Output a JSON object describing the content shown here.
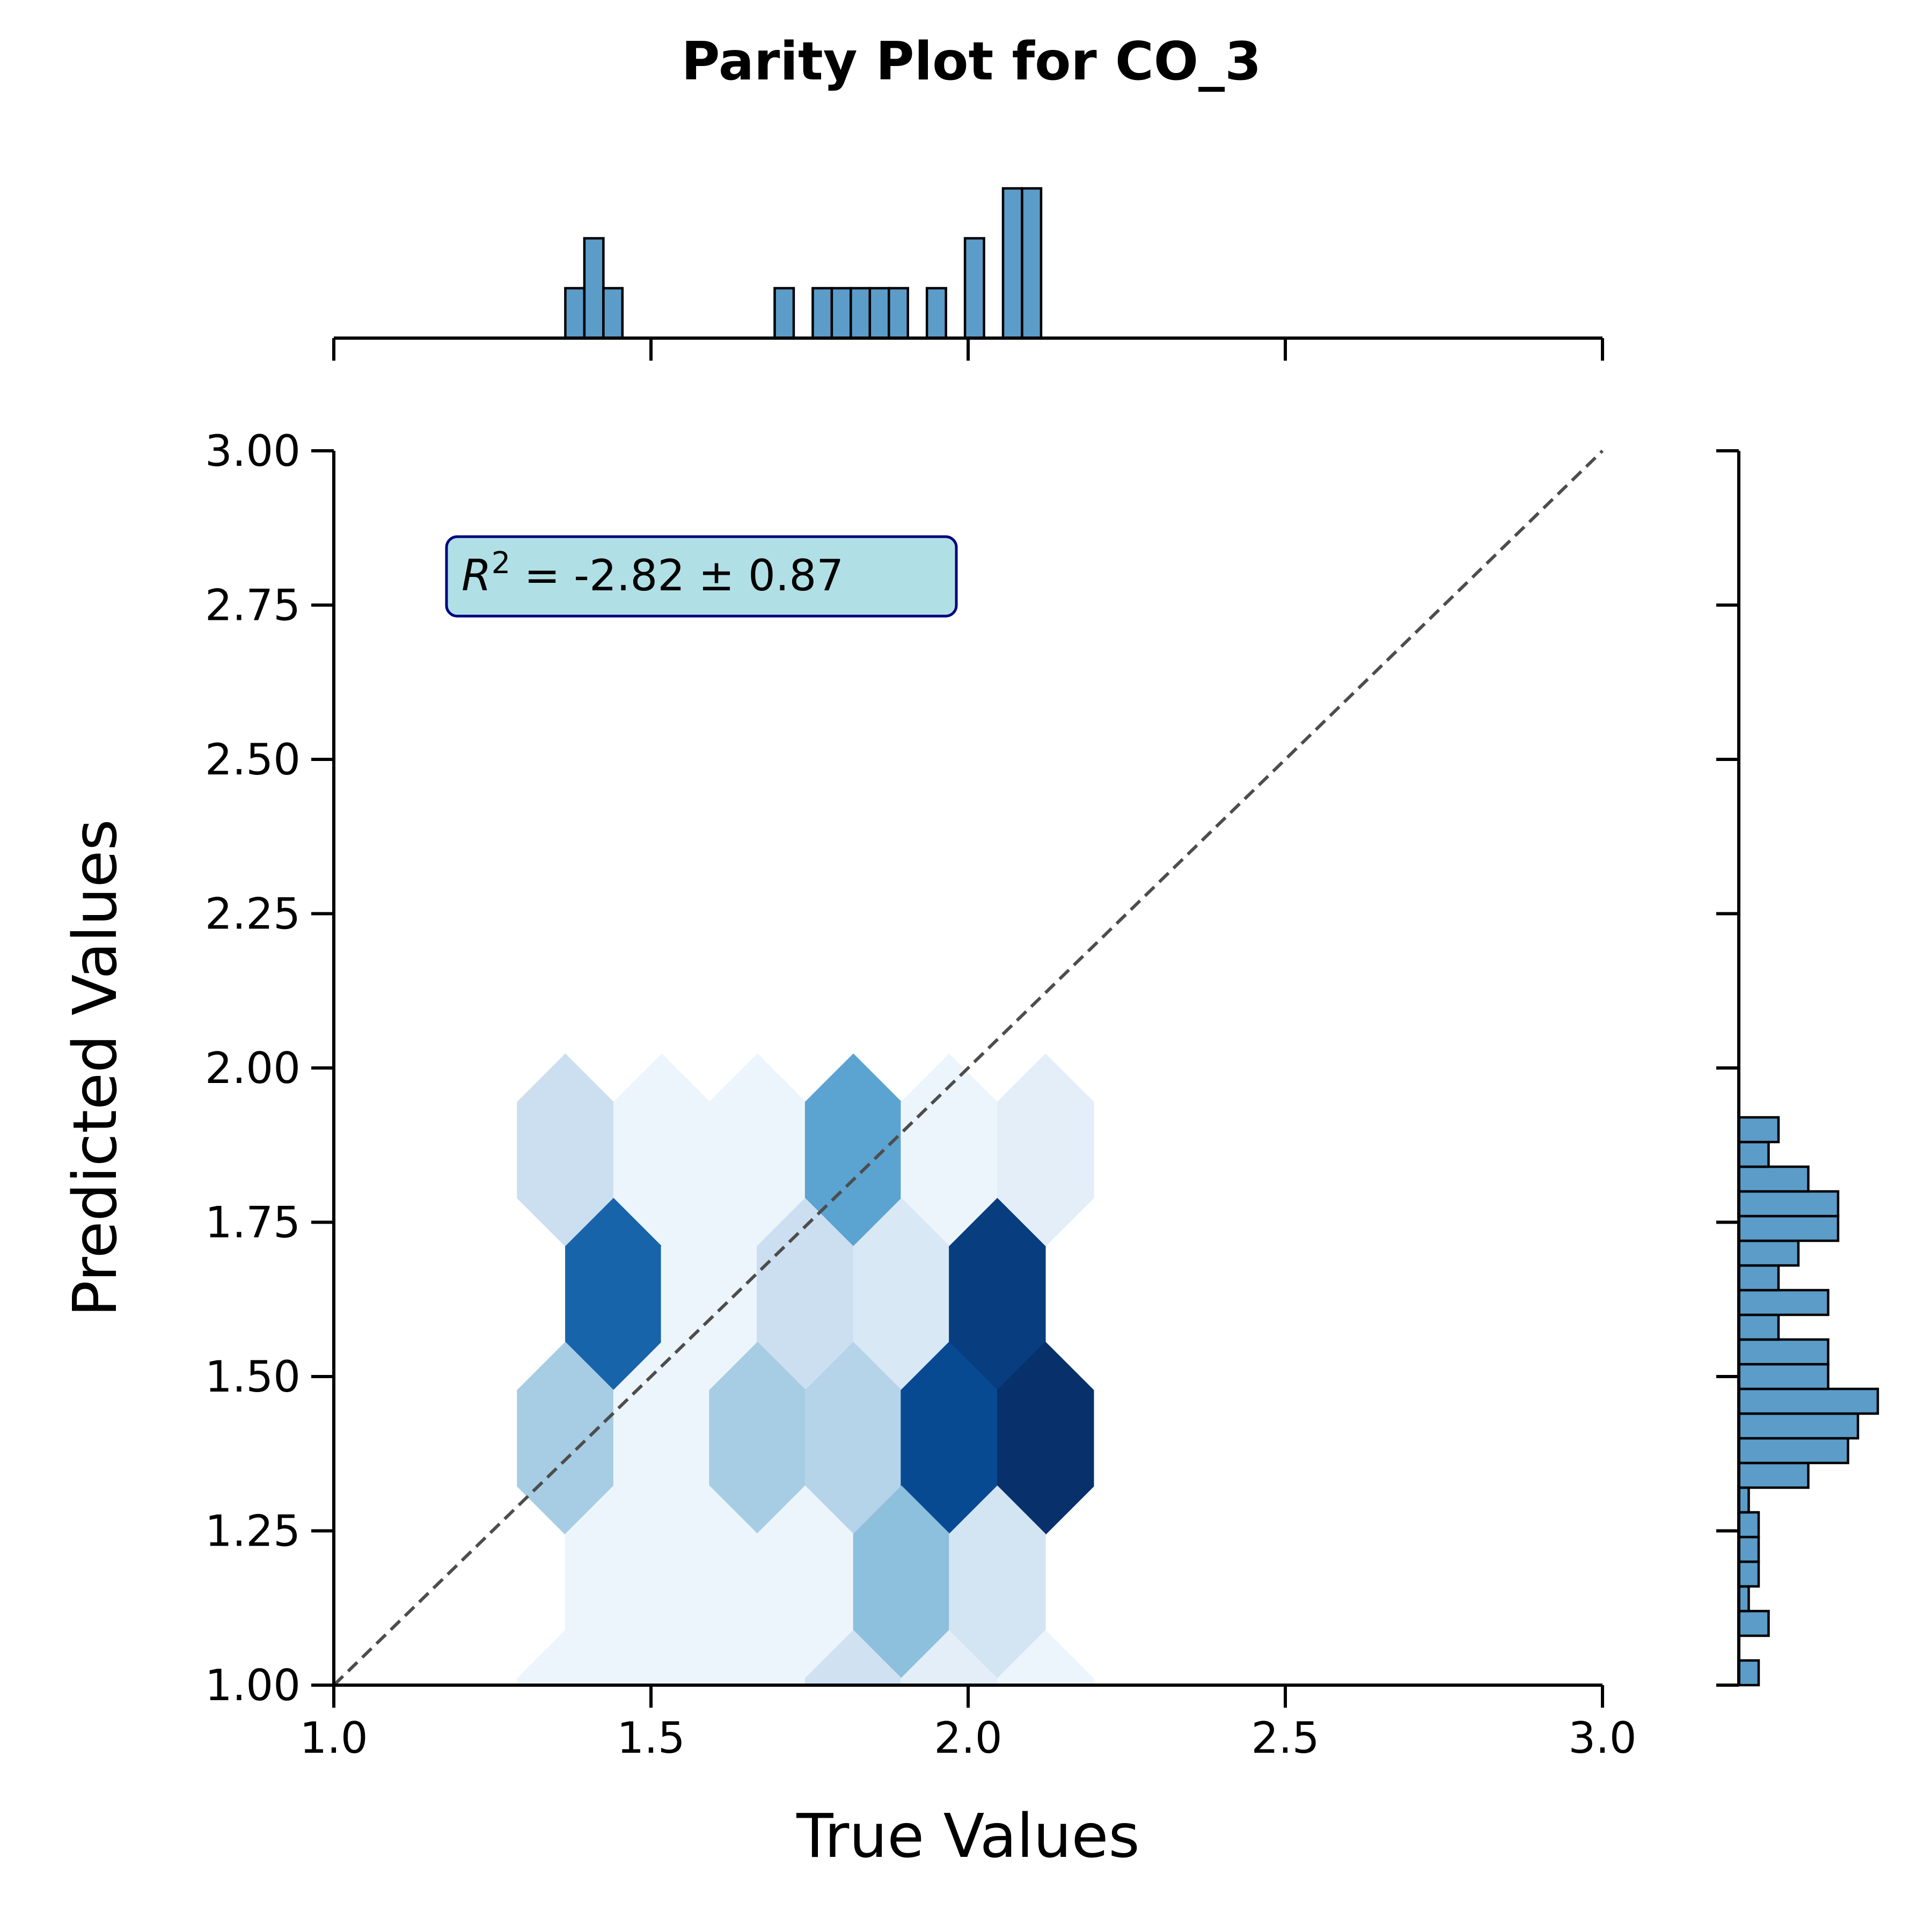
{
  "chart_data": {
    "type": "hexbin",
    "title": "Parity Plot for CO_3",
    "xlabel": "True Values",
    "ylabel": "Predicted Values",
    "xlim": [
      1.0,
      3.0
    ],
    "ylim": [
      1.0,
      3.0
    ],
    "x_ticks": [
      "1.0",
      "1.5",
      "2.0",
      "2.5",
      "3.0"
    ],
    "x_tick_values": [
      1.0,
      1.5,
      2.0,
      2.5,
      3.0
    ],
    "y_ticks": [
      "1.00",
      "1.25",
      "1.50",
      "1.75",
      "2.00",
      "2.25",
      "2.50",
      "2.75",
      "3.00"
    ],
    "y_tick_values": [
      1.0,
      1.25,
      1.5,
      1.75,
      2.0,
      2.25,
      2.5,
      2.75,
      3.0
    ],
    "annotation": {
      "prefix": "R",
      "superscript": "2",
      "text": " = -2.82 ± 0.87"
    },
    "colormap": "Blues",
    "reference_line": {
      "from": [
        1.0,
        1.0
      ],
      "to": [
        3.0,
        3.0
      ],
      "style": "dashed",
      "color": "#4d4d4d"
    },
    "hex_cells": [
      {
        "x": 1.365,
        "y": 1.867,
        "count": 0.22
      },
      {
        "x": 1.517,
        "y": 1.867,
        "count": 0.05
      },
      {
        "x": 1.668,
        "y": 1.867,
        "count": 0.05
      },
      {
        "x": 1.819,
        "y": 1.867,
        "count": 0.55
      },
      {
        "x": 1.97,
        "y": 1.867,
        "count": 0.05
      },
      {
        "x": 2.122,
        "y": 1.867,
        "count": 0.1
      },
      {
        "x": 1.441,
        "y": 1.633,
        "count": 0.8
      },
      {
        "x": 1.592,
        "y": 1.633,
        "count": 0.05
      },
      {
        "x": 1.743,
        "y": 1.633,
        "count": 0.22
      },
      {
        "x": 1.895,
        "y": 1.633,
        "count": 0.15
      },
      {
        "x": 2.046,
        "y": 1.633,
        "count": 0.95
      },
      {
        "x": 1.365,
        "y": 1.4,
        "count": 0.35
      },
      {
        "x": 1.517,
        "y": 1.4,
        "count": 0.05
      },
      {
        "x": 1.668,
        "y": 1.4,
        "count": 0.35
      },
      {
        "x": 1.819,
        "y": 1.4,
        "count": 0.3
      },
      {
        "x": 1.97,
        "y": 1.4,
        "count": 0.9
      },
      {
        "x": 2.122,
        "y": 1.4,
        "count": 1.0
      },
      {
        "x": 1.441,
        "y": 1.167,
        "count": 0.05
      },
      {
        "x": 1.592,
        "y": 1.167,
        "count": 0.05
      },
      {
        "x": 1.743,
        "y": 1.167,
        "count": 0.05
      },
      {
        "x": 1.895,
        "y": 1.167,
        "count": 0.42
      },
      {
        "x": 2.046,
        "y": 1.167,
        "count": 0.18
      },
      {
        "x": 1.365,
        "y": 0.933,
        "count": 0.05
      },
      {
        "x": 1.517,
        "y": 0.933,
        "count": 0.05
      },
      {
        "x": 1.668,
        "y": 0.933,
        "count": 0.05
      },
      {
        "x": 1.819,
        "y": 0.933,
        "count": 0.2
      },
      {
        "x": 1.97,
        "y": 0.933,
        "count": 0.1
      },
      {
        "x": 2.122,
        "y": 0.933,
        "count": 0.05
      }
    ],
    "top_histogram": {
      "bin_width": 0.03,
      "bins": [
        {
          "x": 1.38,
          "count": 1
        },
        {
          "x": 1.41,
          "count": 2
        },
        {
          "x": 1.44,
          "count": 1
        },
        {
          "x": 1.71,
          "count": 1
        },
        {
          "x": 1.77,
          "count": 1
        },
        {
          "x": 1.8,
          "count": 1
        },
        {
          "x": 1.83,
          "count": 1
        },
        {
          "x": 1.86,
          "count": 1
        },
        {
          "x": 1.89,
          "count": 1
        },
        {
          "x": 1.95,
          "count": 1
        },
        {
          "x": 2.01,
          "count": 2
        },
        {
          "x": 2.07,
          "count": 3
        },
        {
          "x": 2.1,
          "count": 3
        }
      ]
    },
    "right_histogram": {
      "bin_width": 0.04,
      "bins": [
        {
          "y": 1.02,
          "count": 1
        },
        {
          "y": 1.1,
          "count": 1.5
        },
        {
          "y": 1.14,
          "count": 0.5
        },
        {
          "y": 1.18,
          "count": 1
        },
        {
          "y": 1.22,
          "count": 1
        },
        {
          "y": 1.26,
          "count": 1
        },
        {
          "y": 1.3,
          "count": 0.5
        },
        {
          "y": 1.34,
          "count": 3.5
        },
        {
          "y": 1.38,
          "count": 5.5
        },
        {
          "y": 1.42,
          "count": 6
        },
        {
          "y": 1.46,
          "count": 7
        },
        {
          "y": 1.5,
          "count": 4.5
        },
        {
          "y": 1.54,
          "count": 4.5
        },
        {
          "y": 1.58,
          "count": 2
        },
        {
          "y": 1.62,
          "count": 4.5
        },
        {
          "y": 1.66,
          "count": 2
        },
        {
          "y": 1.7,
          "count": 3
        },
        {
          "y": 1.74,
          "count": 5
        },
        {
          "y": 1.78,
          "count": 5
        },
        {
          "y": 1.82,
          "count": 3.5
        },
        {
          "y": 1.86,
          "count": 1.5
        },
        {
          "y": 1.9,
          "count": 2
        }
      ]
    },
    "hist_color": "#5b9cc9"
  }
}
